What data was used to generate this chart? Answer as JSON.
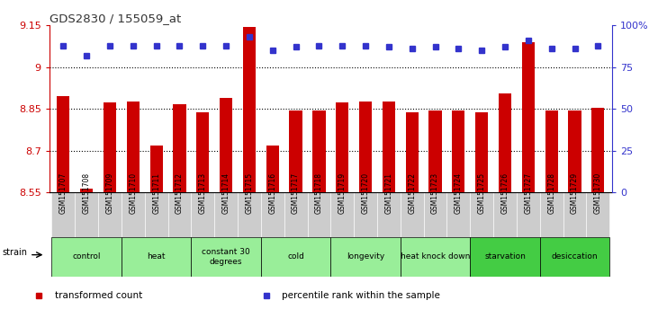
{
  "title": "GDS2830 / 155059_at",
  "samples": [
    "GSM151707",
    "GSM151708",
    "GSM151709",
    "GSM151710",
    "GSM151711",
    "GSM151712",
    "GSM151713",
    "GSM151714",
    "GSM151715",
    "GSM151716",
    "GSM151717",
    "GSM151718",
    "GSM151719",
    "GSM151720",
    "GSM151721",
    "GSM151722",
    "GSM151723",
    "GSM151724",
    "GSM151725",
    "GSM151726",
    "GSM151727",
    "GSM151728",
    "GSM151729",
    "GSM151730"
  ],
  "bar_values": [
    8.895,
    8.563,
    8.873,
    8.878,
    8.718,
    8.868,
    8.838,
    8.888,
    9.143,
    8.718,
    8.843,
    8.843,
    8.873,
    8.878,
    8.878,
    8.838,
    8.843,
    8.843,
    8.838,
    8.905,
    9.09,
    8.843,
    8.843,
    8.855
  ],
  "percentile_values": [
    88,
    82,
    88,
    88,
    88,
    88,
    88,
    88,
    93,
    85,
    87,
    88,
    88,
    88,
    87,
    86,
    87,
    86,
    85,
    87,
    91,
    86,
    86,
    88
  ],
  "bar_color": "#cc0000",
  "dot_color": "#3333cc",
  "ylim_left": [
    8.55,
    9.15
  ],
  "ylim_right": [
    0,
    100
  ],
  "yticks_left": [
    8.55,
    8.7,
    8.85,
    9.0,
    9.15
  ],
  "ytick_labels_left": [
    "8.55",
    "8.7",
    "8.85",
    "9",
    "9.15"
  ],
  "yticks_right": [
    0,
    25,
    50,
    75,
    100
  ],
  "ytick_labels_right": [
    "0",
    "25",
    "50",
    "75",
    "100%"
  ],
  "hlines": [
    9.0,
    8.85,
    8.7
  ],
  "groups": [
    {
      "label": "control",
      "start": 0,
      "end": 2,
      "color": "#99ee99"
    },
    {
      "label": "heat",
      "start": 3,
      "end": 5,
      "color": "#99ee99"
    },
    {
      "label": "constant 30\ndegrees",
      "start": 6,
      "end": 8,
      "color": "#99ee99"
    },
    {
      "label": "cold",
      "start": 9,
      "end": 11,
      "color": "#99ee99"
    },
    {
      "label": "longevity",
      "start": 12,
      "end": 14,
      "color": "#99ee99"
    },
    {
      "label": "heat knock down",
      "start": 15,
      "end": 17,
      "color": "#99ee99"
    },
    {
      "label": "starvation",
      "start": 18,
      "end": 20,
      "color": "#44cc44"
    },
    {
      "label": "desiccation",
      "start": 21,
      "end": 23,
      "color": "#44cc44"
    }
  ],
  "legend_items": [
    {
      "label": "transformed count",
      "color": "#cc0000"
    },
    {
      "label": "percentile rank within the sample",
      "color": "#3333cc"
    }
  ],
  "strain_label": "strain",
  "background_color": "#ffffff",
  "left_axis_color": "#cc0000",
  "right_axis_color": "#3333cc",
  "xtick_bg_color": "#cccccc"
}
